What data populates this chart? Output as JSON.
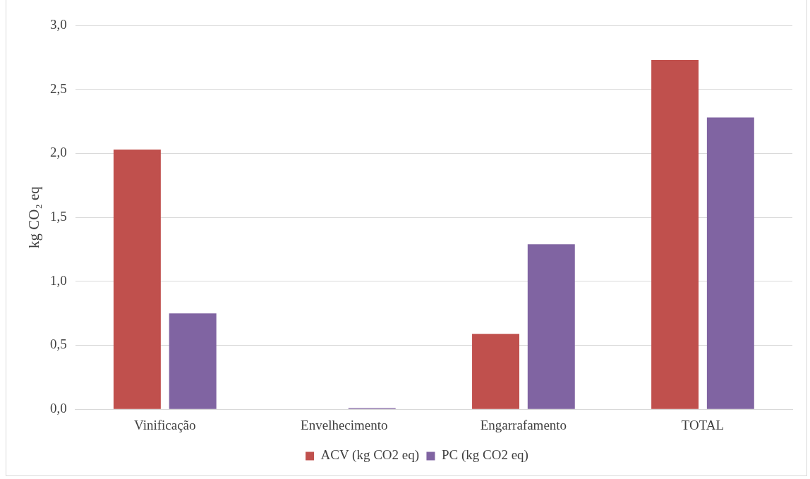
{
  "chart_data": {
    "type": "bar",
    "ylabel": "kg CO₂ eq",
    "categories": [
      "Vinificação",
      "Envelhecimento",
      "Engarrafamento",
      "TOTAL"
    ],
    "series": [
      {
        "name": "ACV (kg CO2 eq)",
        "color": "#c0504d",
        "values": [
          2.03,
          0,
          0.59,
          2.73
        ]
      },
      {
        "name": "PC (kg CO2 eq)",
        "color": "#8064a2",
        "values": [
          0.75,
          0.01,
          1.29,
          2.28
        ]
      }
    ],
    "ylim": [
      0,
      3
    ],
    "yticks": [
      {
        "value": 0,
        "label": "0,0"
      },
      {
        "value": 0.5,
        "label": "0,5"
      },
      {
        "value": 1,
        "label": "1,0"
      },
      {
        "value": 1.5,
        "label": "1,5"
      },
      {
        "value": 2,
        "label": "2,0"
      },
      {
        "value": 2.5,
        "label": "2,5"
      },
      {
        "value": 3,
        "label": "3,0"
      }
    ],
    "grid": "y",
    "legend": "bottom"
  }
}
